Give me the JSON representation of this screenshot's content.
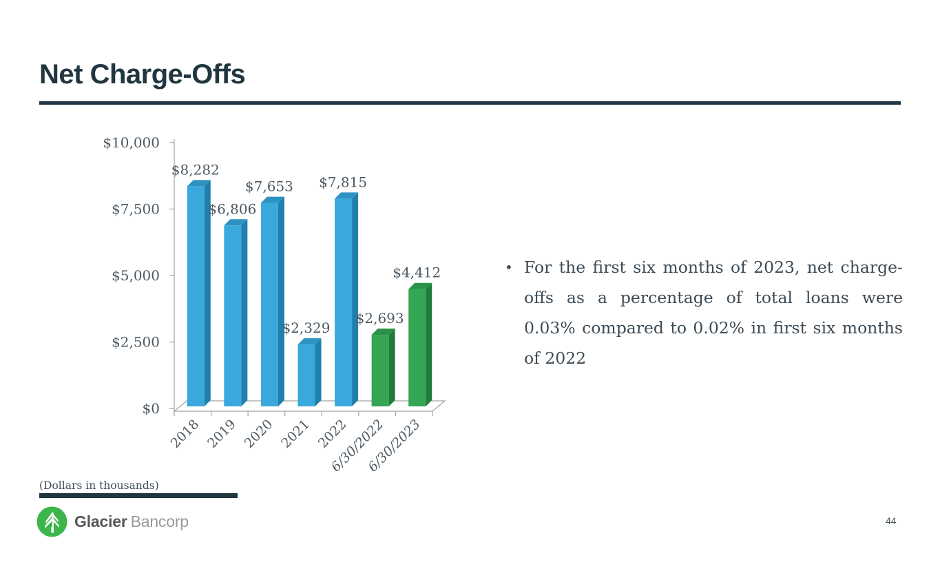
{
  "slide": {
    "title": "Net Charge-Offs",
    "footnote": "(Dollars in thousands)",
    "bullet_char": "•",
    "bullet_text": "For the first six months of 2023, net charge-offs as a percentage of total loans were 0.03% compared to 0.02% in first six months of 2022",
    "page_number": "44"
  },
  "logo": {
    "icon": "evergreen-tree-icon",
    "primary": "Glacier",
    "secondary": "Bancorp"
  },
  "colors": {
    "dark": "#213640",
    "text": "#3d4b55",
    "chart_text": "#4d5a64",
    "axis": "#a3a3a3",
    "logo_green": "#3cb54a",
    "logo_dark": "#57585a",
    "logo_gray": "#97999c",
    "page": "#44525a"
  },
  "chart_data": {
    "type": "bar",
    "style": "3d",
    "title": "",
    "xlabel": "",
    "ylabel": "",
    "units": "Dollars in thousands",
    "categories": [
      "2018",
      "2019",
      "2020",
      "2021",
      "2022",
      "6/30/2022",
      "6/30/2023"
    ],
    "values": [
      8282,
      6806,
      7653,
      2329,
      7815,
      2693,
      4412
    ],
    "data_labels": [
      "$8,282",
      "$6,806",
      "$7,653",
      "$2,329",
      "$7,815",
      "$2,693",
      "$4,412"
    ],
    "bar_colors": [
      "blue",
      "blue",
      "blue",
      "blue",
      "blue",
      "green",
      "green"
    ],
    "italic_categories": [
      false,
      false,
      false,
      false,
      false,
      true,
      true
    ],
    "y_ticks": [
      "$10,000",
      "$7,500",
      "$5,000",
      "$2,500",
      "$0"
    ],
    "ylim": [
      0,
      10000
    ],
    "grid": "off",
    "legend": "none",
    "series_colors": {
      "blue": {
        "front": "#3aa8dc",
        "side": "#1f7fad",
        "top": "#2d92c2"
      },
      "green": {
        "front": "#35a653",
        "side": "#1f7c3c",
        "top": "#2a9247"
      }
    }
  }
}
